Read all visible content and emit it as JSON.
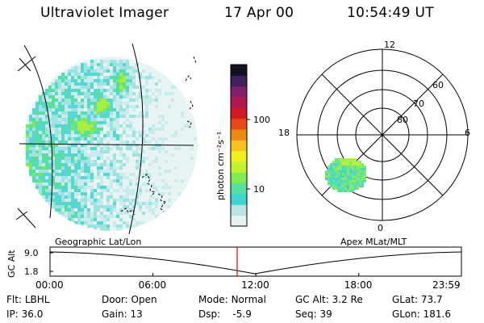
{
  "header": {
    "instrument": "Ultraviolet Imager",
    "date": "17 Apr 00",
    "time": "10:54:49 UT"
  },
  "colorbar": {
    "unit": "photon cm⁻²s⁻¹",
    "ticks": [
      "100",
      "10"
    ],
    "colors": [
      "#e8f0f0",
      "#b8e4e4",
      "#40d4d0",
      "#58e0a0",
      "#80ec50",
      "#c4f030",
      "#f0f020",
      "#f8c020",
      "#f08818",
      "#e84818",
      "#d01820",
      "#b01850",
      "#802068",
      "#402060",
      "#101020"
    ]
  },
  "polar": {
    "mlt_labels": [
      "12",
      "18",
      "6",
      "0"
    ],
    "lat_labels": [
      "60",
      "70",
      "80"
    ]
  },
  "timeline": {
    "left_title": "Geographic Lat/Lon",
    "right_title": "Apex MLat/MLT",
    "ylabel": "GC Alt",
    "y_ticks": [
      "9.0",
      "1.8"
    ],
    "x_ticks": [
      "00:00",
      "06:00",
      "12:00",
      "18:00",
      "23:59"
    ],
    "marker_time_hours": 10.91
  },
  "info": {
    "flt_label": "Flt:",
    "flt_value": "LBHL",
    "ip_label": "IP:",
    "ip_value": "36.0",
    "door_label": "Door:",
    "door_value": "Open",
    "gain_label": "Gain:",
    "gain_value": "13",
    "mode_label": "Mode:",
    "mode_value": "Normal",
    "dsp_label": "Dsp:",
    "dsp_value": "-5.9",
    "gcalt_label": "GC Alt:",
    "gcalt_value": "3.2 Re",
    "seq_label": "Seq:",
    "seq_value": "39",
    "glat_label": "GLat:",
    "glat_value": "73.7",
    "glon_label": "GLon:",
    "glon_value": "181.6"
  }
}
